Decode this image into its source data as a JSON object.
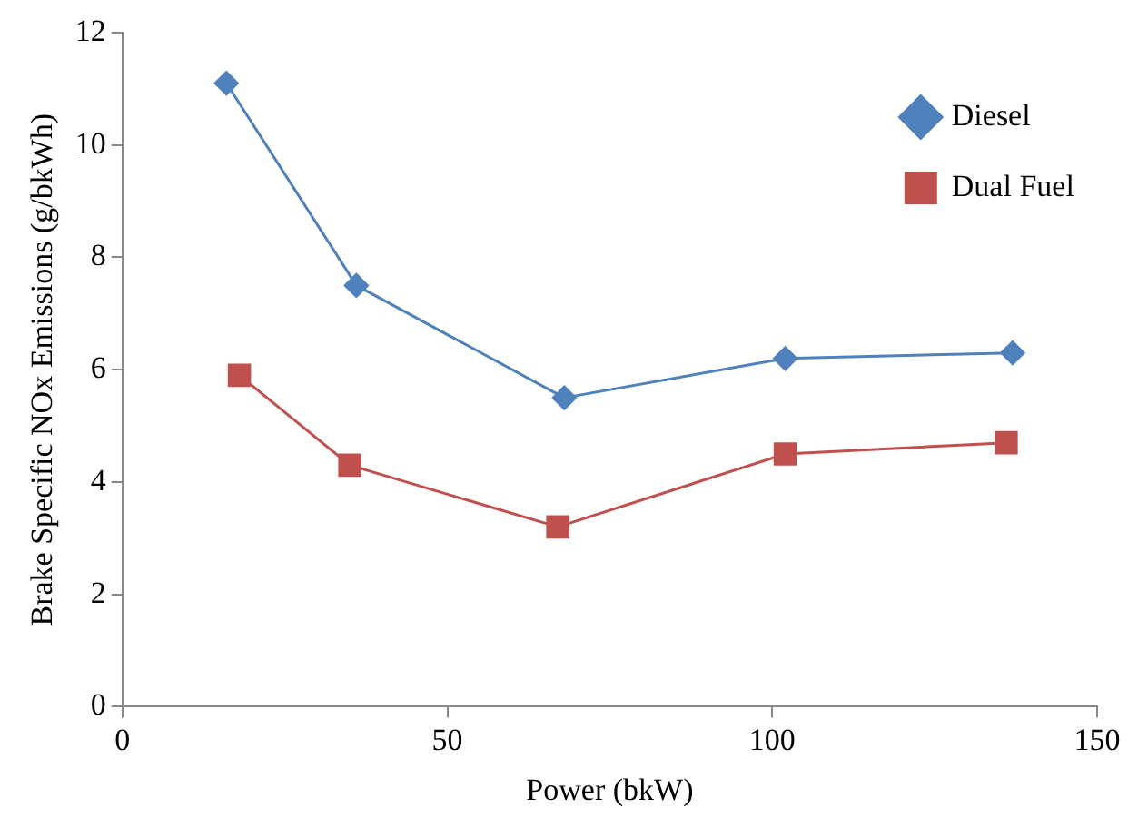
{
  "chart_data": {
    "type": "line",
    "xlabel": "Power (bkW)",
    "ylabel": "Brake Specific NOx Emissions (g/bkWh)",
    "series": [
      {
        "name": "Diesel",
        "color": "#4f81bd",
        "marker": "diamond",
        "x": [
          16,
          36,
          68,
          102,
          137
        ],
        "values": [
          11.1,
          7.5,
          5.5,
          6.2,
          6.3
        ]
      },
      {
        "name": "Dual Fuel",
        "color": "#c0504d",
        "marker": "square",
        "x": [
          18,
          35,
          67,
          102,
          136
        ],
        "values": [
          5.9,
          4.3,
          3.2,
          4.5,
          4.7
        ]
      }
    ],
    "xlim": [
      0,
      150
    ],
    "xticks": [
      0,
      50,
      100,
      150
    ],
    "ylim": [
      0,
      12
    ],
    "yticks": [
      0,
      2,
      4,
      6,
      8,
      10,
      12
    ],
    "grid": false,
    "legend": "top right"
  }
}
